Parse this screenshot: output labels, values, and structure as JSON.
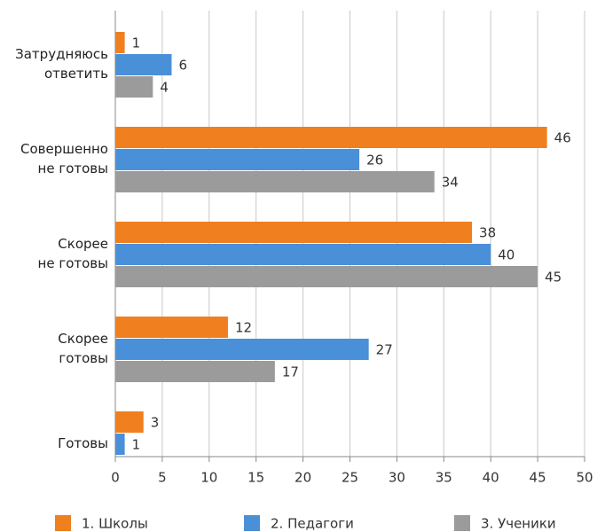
{
  "chart_data": {
    "type": "hbar",
    "categories": [
      "Затрудняюсь\nответить",
      "Совершенно\nне готовы",
      "Скорее\nне готовы",
      "Скорее\nготовы",
      "Готовы"
    ],
    "series": [
      {
        "name": "1. Школы",
        "color": "#f07f1f",
        "values": [
          1,
          46,
          38,
          12,
          3
        ]
      },
      {
        "name": "2. Педагоги",
        "color": "#4a90d9",
        "values": [
          6,
          26,
          40,
          27,
          1
        ]
      },
      {
        "name": "3. Ученики",
        "color": "#9b9b9b",
        "values": [
          4,
          34,
          45,
          17,
          null
        ]
      }
    ],
    "xlim": [
      0,
      50
    ],
    "xticks": [
      0,
      5,
      10,
      15,
      20,
      25,
      30,
      35,
      40,
      45,
      50
    ],
    "grid": true
  }
}
